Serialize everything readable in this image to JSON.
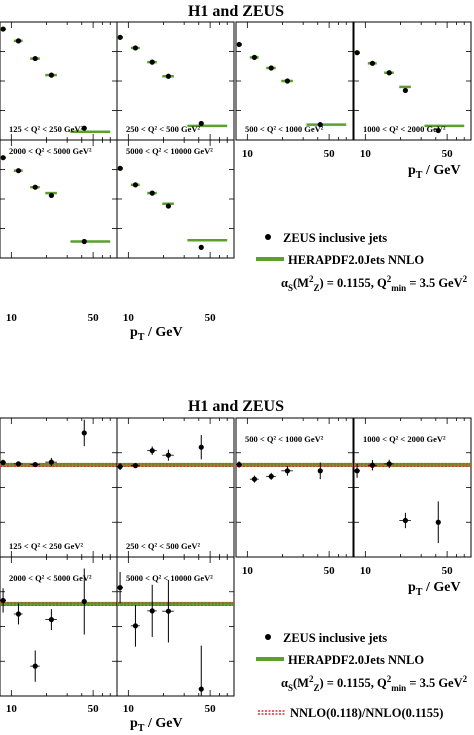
{
  "figure": {
    "top_title": "H1 and ZEUS",
    "bottom_title": "H1 and ZEUS",
    "legend": {
      "data_label": "ZEUS inclusive jets",
      "theory_label": "HERAPDF2.0Jets NNLO",
      "alpha_label": "αS(M²Z) = 0.1155, Q²min = 3.5 GeV²",
      "ratio_label": "NNLO(0.118)/NNLO(0.1155)"
    },
    "colors": {
      "theory": "#5aa02c",
      "ratio": "#e03030",
      "data": "#000000"
    }
  },
  "chart_data": [
    {
      "type": "scatter",
      "title": "H1 and ZEUS",
      "xlabel": "pT / GeV",
      "ylabel": "",
      "xscale": "log",
      "xlim": [
        8,
        80
      ],
      "x_ticks": [
        10,
        50
      ],
      "panels": [
        {
          "label": "125 < Q² < 250 GeV²",
          "x": [
            8.5,
            11.5,
            16,
            22,
            42
          ],
          "y": [
            0.94,
            0.84,
            0.69,
            0.55,
            0.1
          ],
          "xerr_lo": [
            0.5,
            1,
            1.5,
            2.5,
            10
          ],
          "xerr_hi": [
            0.5,
            1,
            1.5,
            2.5,
            28
          ],
          "theory": [
            0.94,
            0.84,
            0.69,
            0.55,
            0.07
          ]
        },
        {
          "label": "250 < Q² < 500 GeV²",
          "x": [
            8.5,
            11.5,
            16,
            22,
            42
          ],
          "y": [
            0.87,
            0.78,
            0.66,
            0.54,
            0.14
          ],
          "xerr_lo": [
            0.5,
            1,
            1.5,
            2.5,
            10
          ],
          "xerr_hi": [
            0.5,
            1,
            1.5,
            2.5,
            28
          ],
          "theory": [
            0.87,
            0.78,
            0.66,
            0.54,
            0.12
          ]
        },
        {
          "label": "500 < Q² < 1000 GeV²",
          "x": [
            8.5,
            11.5,
            16,
            22,
            42
          ],
          "y": [
            0.81,
            0.7,
            0.61,
            0.5,
            0.13
          ],
          "xerr_lo": [
            0.5,
            1,
            1.5,
            2.5,
            10
          ],
          "xerr_hi": [
            0.5,
            1,
            1.5,
            2.5,
            28
          ],
          "theory": [
            0.81,
            0.7,
            0.61,
            0.5,
            0.13
          ]
        },
        {
          "label": "1000 < Q² < 2000 GeV²",
          "x": [
            8.5,
            11.5,
            16,
            22,
            42
          ],
          "y": [
            0.74,
            0.65,
            0.57,
            0.42,
            0.08
          ],
          "xerr_lo": [
            0.5,
            1,
            1.5,
            2.5,
            10
          ],
          "xerr_hi": [
            0.5,
            1,
            1.5,
            2.5,
            28
          ],
          "theory": [
            0.74,
            0.65,
            0.57,
            0.45,
            0.12
          ]
        },
        {
          "label": "2000 < Q² < 5000 GeV²",
          "x": [
            8.5,
            11.5,
            16,
            22,
            42
          ],
          "y": [
            0.85,
            0.74,
            0.6,
            0.53,
            0.14
          ],
          "xerr_lo": [
            0.5,
            1,
            1.5,
            2.5,
            10
          ],
          "xerr_hi": [
            0.5,
            1,
            1.5,
            2.5,
            28
          ],
          "theory": [
            0.85,
            0.74,
            0.6,
            0.55,
            0.14
          ]
        },
        {
          "label": "5000 < Q² < 10000 GeV²",
          "x": [
            8.5,
            11.5,
            16,
            22,
            42
          ],
          "y": [
            0.76,
            0.62,
            0.55,
            0.44,
            0.09
          ],
          "xerr_lo": [
            0.5,
            1,
            1.5,
            2.5,
            10
          ],
          "xerr_hi": [
            0.5,
            1,
            1.5,
            2.5,
            28
          ],
          "theory": [
            0.76,
            0.62,
            0.55,
            0.46,
            0.15
          ]
        }
      ]
    },
    {
      "type": "scatter",
      "title": "H1 and ZEUS",
      "xlabel": "pT / GeV",
      "ylabel": "",
      "xscale": "log",
      "xlim": [
        8,
        80
      ],
      "x_ticks": [
        10,
        50
      ],
      "panels": [
        {
          "label": "125 < Q² < 250 GeV²",
          "x": [
            8.5,
            11.5,
            16,
            22,
            42
          ],
          "y": [
            0.82,
            0.78,
            0.76,
            0.83,
            1.67
          ],
          "yerr": [
            0.08,
            0.06,
            0.06,
            0.12,
            0.38
          ],
          "xerr_lo": [
            0.5,
            1,
            1.5,
            2.5,
            10
          ],
          "xerr_hi": [
            0.5,
            1,
            1.5,
            2.5,
            28
          ]
        },
        {
          "label": "250 < Q² < 500 GeV²",
          "x": [
            8.5,
            11.5,
            16,
            22,
            42
          ],
          "y": [
            0.7,
            0.73,
            1.16,
            1.03,
            1.26
          ],
          "yerr": [
            0.1,
            0.07,
            0.12,
            0.16,
            0.35
          ],
          "xerr_lo": [
            0.5,
            1,
            1.5,
            2.5,
            10
          ],
          "xerr_hi": [
            0.5,
            1,
            1.5,
            2.5,
            28
          ]
        },
        {
          "label": "500 < Q² < 1000 GeV²",
          "x": [
            8.5,
            11.5,
            16,
            22,
            42
          ],
          "y": [
            0.76,
            0.34,
            0.42,
            0.58,
            0.58
          ],
          "yerr": [
            0.09,
            0.1,
            0.1,
            0.14,
            0.24
          ],
          "xerr_lo": [
            0.5,
            1,
            1.5,
            2.5,
            10
          ],
          "xerr_hi": [
            0.5,
            1,
            1.5,
            2.5,
            28
          ]
        },
        {
          "label": "1000 < Q² < 2000 GeV²",
          "x": [
            8.5,
            11.5,
            16,
            22,
            42
          ],
          "y": [
            0.58,
            0.74,
            0.78,
            -0.85,
            -0.9
          ],
          "yerr": [
            0.2,
            0.15,
            0.12,
            0.22,
            0.6
          ],
          "xerr_lo": [
            0.5,
            1,
            1.5,
            2.5,
            10
          ],
          "xerr_hi": [
            0.5,
            1,
            1.5,
            2.5,
            28
          ]
        },
        {
          "label": "2000 < Q² < 5000 GeV²",
          "x": [
            8.5,
            11.5,
            16,
            22,
            42
          ],
          "y": [
            0.85,
            0.46,
            -1.04,
            0.3,
            0.82
          ],
          "yerr": [
            0.35,
            0.3,
            0.45,
            0.3,
            0.95
          ],
          "xerr_lo": [
            0.5,
            1,
            1.5,
            2.5,
            10
          ],
          "xerr_hi": [
            0.5,
            1,
            1.5,
            2.5,
            28
          ]
        },
        {
          "label": "5000 < Q² < 10000 GeV²",
          "x": [
            8.5,
            11.5,
            16,
            22,
            42
          ],
          "y": [
            1.22,
            0.12,
            0.55,
            0.54,
            -1.7
          ],
          "yerr": [
            0.45,
            0.6,
            0.75,
            0.9,
            1.25
          ],
          "xerr_lo": [
            0.5,
            1,
            1.5,
            2.5,
            10
          ],
          "xerr_hi": [
            0.5,
            1,
            1.5,
            2.5,
            28
          ]
        }
      ]
    }
  ]
}
